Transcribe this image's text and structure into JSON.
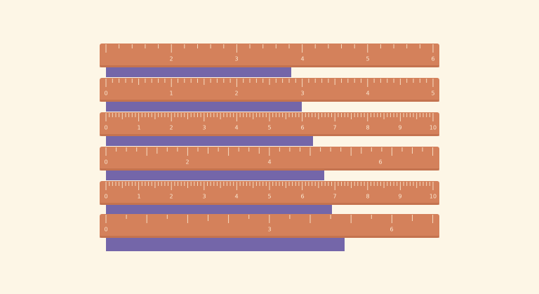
{
  "rulers": [
    {
      "labels": [
        "2",
        "3",
        "4",
        "5",
        "6"
      ]
    },
    {
      "labels": [
        "0",
        "1",
        "2",
        "3",
        "4",
        "5"
      ]
    },
    {
      "labels": [
        "0",
        "1",
        "2",
        "3",
        "4",
        "5",
        "6",
        "7",
        "8",
        "9",
        "10"
      ]
    },
    {
      "labels": [
        "0",
        "2",
        "4",
        "6"
      ]
    },
    {
      "labels": [
        "0",
        "1",
        "2",
        "3",
        "4",
        "5",
        "6",
        "7",
        "8",
        "9",
        "10"
      ]
    },
    {
      "labels": [
        "0",
        "3",
        "6"
      ]
    }
  ]
}
